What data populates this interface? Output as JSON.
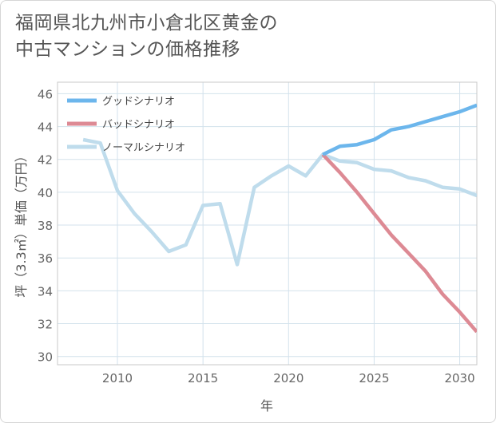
{
  "title_lines": [
    "福岡県北九州市小倉北区黄金の",
    "中古マンションの価格推移"
  ],
  "chart_data": {
    "type": "line",
    "title": "福岡県北九州市小倉北区黄金の中古マンションの価格推移",
    "xlabel": "年",
    "ylabel": "坪（3.3㎡）単価（万円）",
    "xlim": [
      2006.5,
      2031
    ],
    "ylim": [
      29.5,
      46.7
    ],
    "x_ticks": [
      2010,
      2015,
      2020,
      2025,
      2030
    ],
    "y_ticks": [
      30,
      32,
      34,
      36,
      38,
      40,
      42,
      44,
      46
    ],
    "grid": true,
    "legend_position": "top-left",
    "series": [
      {
        "name": "グッドシナリオ",
        "color": "#6cb6ec",
        "x": [
          2022,
          2023,
          2024,
          2025,
          2026,
          2027,
          2028,
          2029,
          2030,
          2031
        ],
        "y": [
          42.3,
          42.8,
          42.9,
          43.2,
          43.8,
          44.0,
          44.3,
          44.6,
          44.9,
          45.3
        ]
      },
      {
        "name": "バッドシナリオ",
        "color": "#dd8a94",
        "x": [
          2022,
          2023,
          2024,
          2025,
          2026,
          2027,
          2028,
          2029,
          2030,
          2031
        ],
        "y": [
          42.3,
          41.2,
          40.0,
          38.7,
          37.4,
          36.3,
          35.2,
          33.8,
          32.7,
          31.5
        ]
      },
      {
        "name": "ノーマルシナリオ",
        "color": "#bfdcec",
        "x": [
          2008,
          2009,
          2010,
          2011,
          2012,
          2013,
          2014,
          2015,
          2016,
          2017,
          2018,
          2019,
          2020,
          2021,
          2022,
          2023,
          2024,
          2025,
          2026,
          2027,
          2028,
          2029,
          2030,
          2031
        ],
        "y": [
          43.2,
          43.0,
          40.1,
          38.7,
          37.6,
          36.4,
          36.8,
          39.2,
          39.3,
          35.6,
          40.3,
          41.0,
          41.6,
          41.0,
          42.3,
          41.9,
          41.8,
          41.4,
          41.3,
          40.9,
          40.7,
          40.3,
          40.2,
          39.8
        ]
      }
    ]
  }
}
